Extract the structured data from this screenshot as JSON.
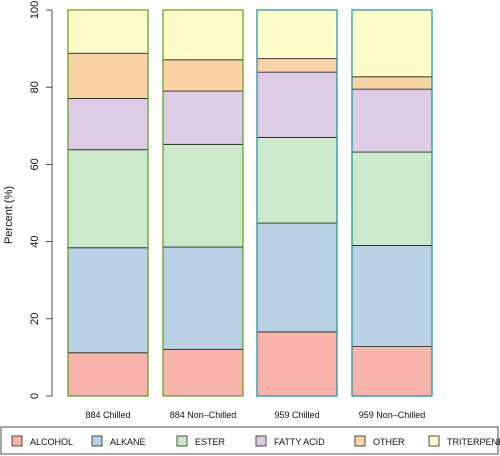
{
  "chart_data": {
    "type": "bar",
    "stacked": true,
    "categories": [
      "884 Chilled",
      "884 Non–Chilled",
      "959 Chilled",
      "959 Non–Chilled"
    ],
    "series": [
      {
        "name": "ALCOHOL",
        "color": "#f9b4ab",
        "values": [
          11.2,
          12.1,
          16.6,
          12.8
        ]
      },
      {
        "name": "ALKANE",
        "color": "#b9d1e3",
        "values": [
          27.2,
          26.5,
          28.2,
          26.2
        ]
      },
      {
        "name": "ESTER",
        "color": "#cde9cb",
        "values": [
          25.4,
          26.6,
          22.2,
          24.2
        ]
      },
      {
        "name": "FATTY ACID",
        "color": "#ddcde4",
        "values": [
          13.3,
          13.8,
          16.9,
          16.3
        ]
      },
      {
        "name": "OTHER",
        "color": "#f9d3a6",
        "values": [
          11.7,
          8.1,
          3.5,
          3.2
        ]
      },
      {
        "name": "TRITERPENE",
        "color": "#fefcc9",
        "values": [
          11.2,
          12.9,
          12.6,
          17.3
        ]
      }
    ],
    "bar_outline_colors": [
      "#5a9a1e",
      "#5a9a1e",
      "#1b8f94",
      "#1b8f94"
    ],
    "ylabel": "Percent (%)",
    "ylim": [
      0,
      100
    ],
    "yticks": [
      0,
      20,
      40,
      60,
      80,
      100
    ],
    "grid": false,
    "legend_position": "bottom"
  }
}
